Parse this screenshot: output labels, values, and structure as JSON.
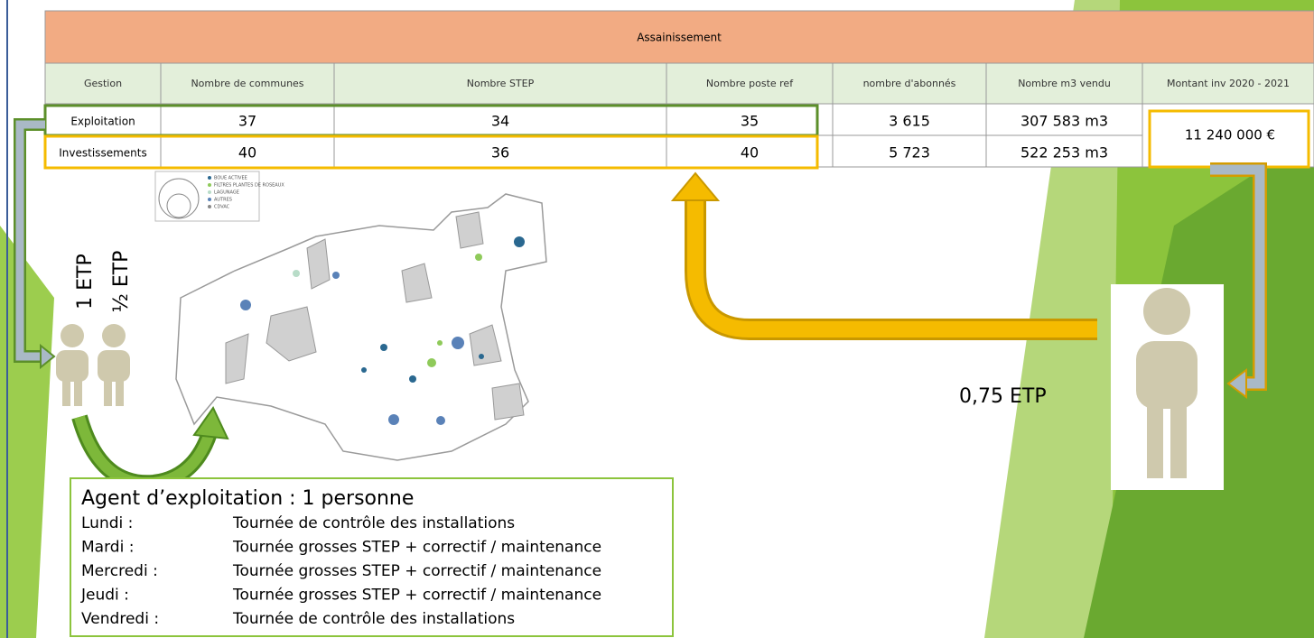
{
  "table": {
    "title": "Assainissement",
    "columns": [
      "Gestion",
      "Nombre de communes",
      "Nombre STEP",
      "Nombre poste ref",
      "nombre d'abonnés",
      "Nombre m3 vendu",
      "Montant inv 2020 - 2021"
    ],
    "rows": [
      [
        "Exploitation",
        "37",
        "34",
        "35",
        "3 615",
        "307 583 m3"
      ],
      [
        "Investissements",
        "40",
        "36",
        "40",
        "5 723",
        "522 253 m3"
      ]
    ],
    "merged_cell": "11 240 000 €"
  },
  "labels": {
    "left_full": "1 ETP",
    "left_half": "½ ETP",
    "right": "0,75 ETP"
  },
  "map_legend": [
    "BOUE ACTIVEE",
    "FILTRES PLANTES DE ROSEAUX",
    "LAGUNAGE",
    "AUTRES",
    "CDVAC"
  ],
  "agent": {
    "title": "Agent d’exploitation : 1 personne",
    "schedule": [
      [
        "Lundi :",
        "Tournée de contrôle des installations"
      ],
      [
        "Mardi :",
        "Tournée grosses STEP + correctif / maintenance"
      ],
      [
        "Mercredi :",
        "Tournée grosses STEP + correctif / maintenance"
      ],
      [
        "Jeudi :",
        "Tournée grosses STEP + correctif / maintenance"
      ],
      [
        "Vendredi :",
        "Tournée de contrôle des installations"
      ]
    ]
  }
}
